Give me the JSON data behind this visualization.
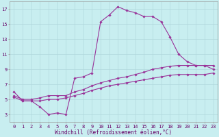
{
  "xlabel": "Windchill (Refroidissement éolien,°C)",
  "bg_color": "#c8eef0",
  "grid_color": "#b0d8dc",
  "line_color": "#993399",
  "xmin": -0.5,
  "xmax": 23.5,
  "ymin": 2,
  "ymax": 18,
  "yticks": [
    3,
    5,
    7,
    9,
    11,
    13,
    15,
    17
  ],
  "xticks": [
    0,
    1,
    2,
    3,
    4,
    5,
    6,
    7,
    8,
    9,
    10,
    11,
    12,
    13,
    14,
    15,
    16,
    17,
    18,
    19,
    20,
    21,
    22,
    23
  ],
  "series1": [
    6.0,
    4.8,
    4.8,
    4.0,
    3.0,
    3.2,
    3.0,
    7.8,
    8.0,
    8.5,
    15.3,
    16.2,
    17.3,
    16.8,
    16.5,
    16.0,
    16.0,
    15.3,
    13.3,
    11.0,
    10.0,
    9.5,
    9.5,
    9.0
  ],
  "series2": [
    5.5,
    5.0,
    5.0,
    5.2,
    5.5,
    5.5,
    5.5,
    6.0,
    6.3,
    6.8,
    7.2,
    7.5,
    7.8,
    8.0,
    8.3,
    8.6,
    9.0,
    9.2,
    9.4,
    9.5,
    9.5,
    9.5,
    9.5,
    9.5
  ],
  "series3": [
    5.3,
    4.8,
    4.8,
    4.8,
    5.0,
    5.0,
    5.2,
    5.5,
    5.8,
    6.2,
    6.5,
    6.8,
    7.0,
    7.2,
    7.4,
    7.6,
    7.8,
    8.0,
    8.2,
    8.3,
    8.3,
    8.3,
    8.3,
    8.5
  ],
  "tick_fontsize": 5.0,
  "xlabel_fontsize": 5.5,
  "marker_size": 1.8,
  "line_width": 0.8
}
